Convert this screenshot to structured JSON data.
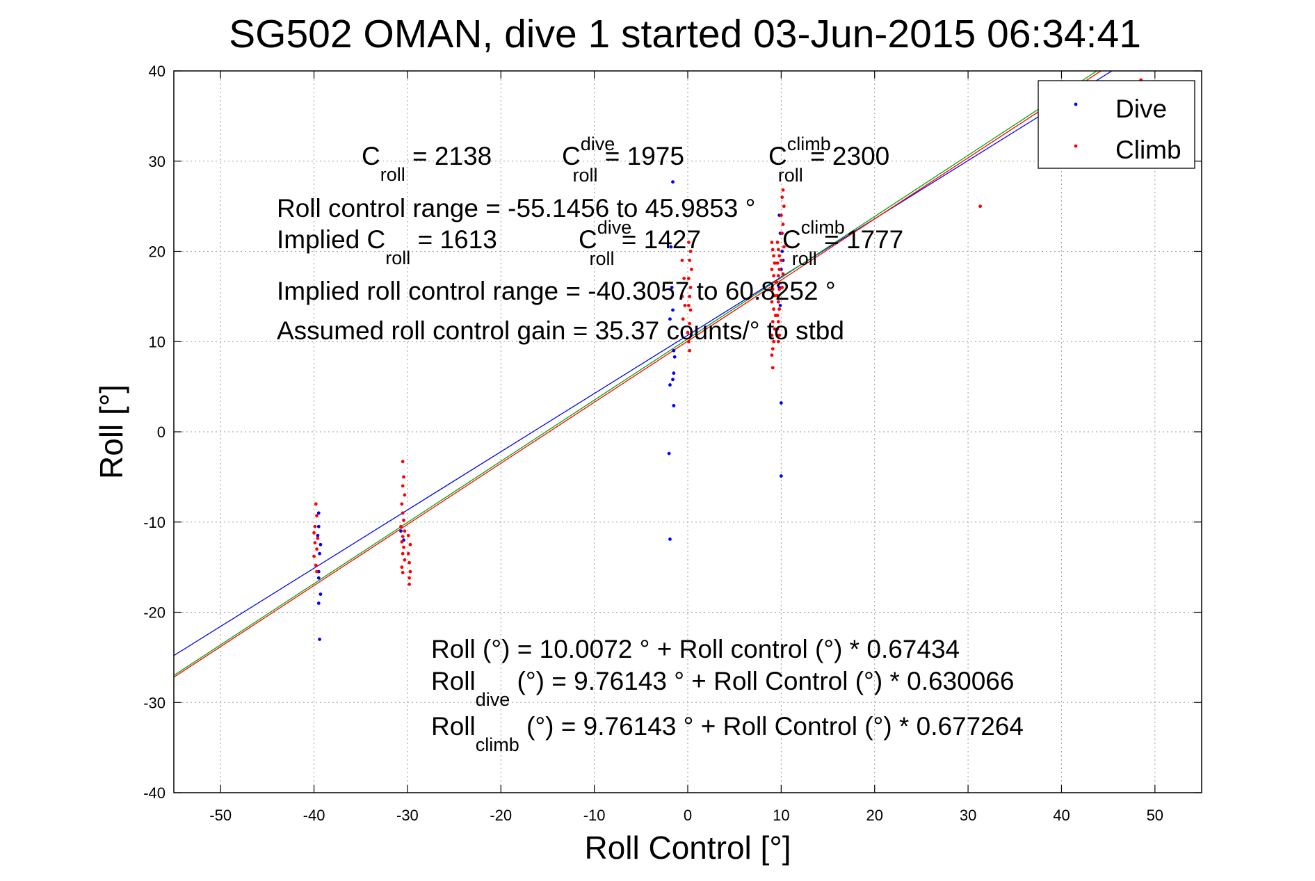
{
  "chart_data": {
    "type": "scatter",
    "title": "SG502 OMAN, dive 1 started 03-Jun-2015 06:34:41",
    "xlabel": "Roll Control [°]",
    "ylabel": "Roll [°]",
    "xlim": [
      -55,
      55
    ],
    "ylim": [
      -40,
      40
    ],
    "grid": true,
    "legend_position": "top-right",
    "x_ticks": [
      "-50",
      "-40",
      "-30",
      "-20",
      "-10",
      "0",
      "10",
      "20",
      "30",
      "40",
      "50"
    ],
    "y_ticks": [
      "40",
      "30",
      "20",
      "10",
      "0",
      "-10",
      "-20",
      "-30",
      "-40"
    ],
    "legend": [
      {
        "name": "Dive",
        "color": "#0000ff"
      },
      {
        "name": "Climb",
        "color": "#ff0000"
      }
    ],
    "series": [
      {
        "name": "Dive",
        "color": "#0000ff",
        "points": [
          [
            -39.5,
            -9.0
          ],
          [
            -39.5,
            -10.5
          ],
          [
            -39.6,
            -11.5
          ],
          [
            -39.3,
            -12.5
          ],
          [
            -39.4,
            -13.5
          ],
          [
            -39.5,
            -15.5
          ],
          [
            -39.5,
            -16.2
          ],
          [
            -39.3,
            -18.0
          ],
          [
            -39.5,
            -19.0
          ],
          [
            -39.4,
            -23.0
          ],
          [
            -30.7,
            -11.0
          ],
          [
            -30.4,
            -12.0
          ],
          [
            -1.6,
            27.7
          ],
          [
            -1.8,
            20.5
          ],
          [
            -1.7,
            16.0
          ],
          [
            -1.6,
            13.5
          ],
          [
            -1.9,
            12.5
          ],
          [
            -1.5,
            9.0
          ],
          [
            -1.4,
            8.3
          ],
          [
            -1.5,
            6.5
          ],
          [
            -1.6,
            5.8
          ],
          [
            -1.9,
            5.2
          ],
          [
            -1.5,
            2.9
          ],
          [
            -2.0,
            -2.4
          ],
          [
            -1.9,
            -11.9
          ],
          [
            9.8,
            24.0
          ],
          [
            9.9,
            22.0
          ],
          [
            10.1,
            20.0
          ],
          [
            10.0,
            18.0
          ],
          [
            9.8,
            16.0
          ],
          [
            10.2,
            19.0
          ],
          [
            9.9,
            14.0
          ],
          [
            10.0,
            3.2
          ],
          [
            10.0,
            -4.9
          ]
        ]
      },
      {
        "name": "Climb",
        "color": "#ff0000",
        "points": [
          [
            -39.8,
            -8.0
          ],
          [
            -39.7,
            -9.3
          ],
          [
            -39.9,
            -10.5
          ],
          [
            -40.0,
            -11.2
          ],
          [
            -39.6,
            -11.8
          ],
          [
            -39.9,
            -12.3
          ],
          [
            -39.7,
            -13.0
          ],
          [
            -40.0,
            -13.8
          ],
          [
            -39.8,
            -14.8
          ],
          [
            -39.7,
            -15.5
          ],
          [
            -30.5,
            -3.3
          ],
          [
            -30.4,
            -5.0
          ],
          [
            -30.5,
            -6.0
          ],
          [
            -30.3,
            -7.0
          ],
          [
            -30.6,
            -8.0
          ],
          [
            -30.5,
            -9.0
          ],
          [
            -30.4,
            -9.8
          ],
          [
            -30.7,
            -10.5
          ],
          [
            -30.3,
            -11.0
          ],
          [
            -30.5,
            -11.6
          ],
          [
            -30.6,
            -12.2
          ],
          [
            -30.4,
            -12.8
          ],
          [
            -30.5,
            -13.5
          ],
          [
            -30.3,
            -14.2
          ],
          [
            -30.6,
            -15.0
          ],
          [
            -30.5,
            -15.6
          ],
          [
            -29.9,
            -11.5
          ],
          [
            -29.7,
            -12.5
          ],
          [
            -29.9,
            -13.5
          ],
          [
            -29.8,
            -14.5
          ],
          [
            -29.7,
            -15.5
          ],
          [
            -29.8,
            -16.2
          ],
          [
            -29.8,
            -16.9
          ],
          [
            -0.6,
            19.0
          ],
          [
            -0.4,
            17.0
          ],
          [
            -0.6,
            15.0
          ],
          [
            -0.3,
            14.0
          ],
          [
            -0.5,
            12.5
          ],
          [
            0.2,
            19.0
          ],
          [
            0.4,
            18.0
          ],
          [
            0.1,
            17.0
          ],
          [
            0.3,
            16.0
          ],
          [
            0.2,
            15.0
          ],
          [
            0.1,
            14.0
          ],
          [
            0.3,
            13.5
          ],
          [
            0.2,
            12.0
          ],
          [
            0.0,
            11.0
          ],
          [
            0.1,
            10.0
          ],
          [
            0.2,
            9.0
          ],
          [
            0.3,
            20.0
          ],
          [
            0.1,
            21.0
          ],
          [
            9.0,
            21.0
          ],
          [
            9.1,
            20.2
          ],
          [
            9.2,
            19.5
          ],
          [
            9.3,
            18.7
          ],
          [
            9.0,
            18.0
          ],
          [
            9.2,
            17.3
          ],
          [
            9.4,
            16.6
          ],
          [
            9.1,
            15.8
          ],
          [
            9.3,
            15.1
          ],
          [
            9.0,
            14.4
          ],
          [
            9.2,
            13.6
          ],
          [
            9.4,
            12.9
          ],
          [
            9.1,
            12.2
          ],
          [
            9.3,
            11.4
          ],
          [
            9.0,
            10.7
          ],
          [
            9.2,
            10.0
          ],
          [
            9.1,
            9.2
          ],
          [
            9.0,
            8.5
          ],
          [
            9.1,
            7.1
          ],
          [
            9.6,
            21.0
          ],
          [
            9.7,
            20.2
          ],
          [
            9.8,
            19.5
          ],
          [
            9.6,
            18.7
          ],
          [
            9.8,
            18.0
          ],
          [
            9.7,
            17.3
          ],
          [
            9.5,
            16.6
          ],
          [
            9.8,
            15.8
          ],
          [
            9.6,
            15.1
          ],
          [
            9.7,
            14.4
          ],
          [
            9.8,
            13.6
          ],
          [
            9.6,
            12.9
          ],
          [
            9.7,
            12.2
          ],
          [
            9.6,
            11.4
          ],
          [
            9.8,
            10.7
          ],
          [
            9.7,
            10.0
          ],
          [
            10.2,
            26.8
          ],
          [
            10.1,
            26.0
          ],
          [
            10.3,
            25.0
          ],
          [
            10.0,
            24.0
          ],
          [
            10.2,
            23.0
          ],
          [
            10.1,
            22.0
          ],
          [
            10.3,
            20.5
          ],
          [
            10.0,
            19.0
          ],
          [
            10.2,
            17.5
          ],
          [
            10.1,
            16.0
          ],
          [
            31.3,
            25.0
          ],
          [
            48.5,
            39.0
          ]
        ]
      }
    ],
    "fit_lines": [
      {
        "color": "#0000ff",
        "points": [
          [
            -55,
            -24.8
          ],
          [
            55,
            46.2
          ]
        ]
      },
      {
        "color": "#ff0000",
        "points": [
          [
            -55,
            -27.2
          ],
          [
            55,
            47.3
          ]
        ]
      },
      {
        "color": "#00aa00",
        "points": [
          [
            -55,
            -27.0
          ],
          [
            55,
            47.6
          ]
        ]
      }
    ],
    "annotations": {
      "line1": [
        {
          "main": "C",
          "sub": "roll",
          "rest": " = 2138"
        },
        {
          "main": "C",
          "sup": "dive",
          "sub": "roll",
          "rest": " = 1975"
        },
        {
          "main": "C",
          "sup": "climb",
          "sub": "roll",
          "rest": " = 2300"
        }
      ],
      "range": "Roll control range = -55.1456 to 45.9853 °",
      "implied": [
        {
          "main": "Implied C",
          "sub": "roll",
          "rest": " = 1613"
        },
        {
          "main": "C",
          "sup": "dive",
          "sub": "roll",
          "rest": " = 1427"
        },
        {
          "main": "C",
          "sup": "climb",
          "sub": "roll",
          "rest": " = 1777"
        }
      ],
      "implied_range": "Implied roll control range = -40.3057 to 60.8252 °",
      "gain": "Assumed roll control gain = 35.37 counts/° to stbd",
      "fit1": "Roll (°) = 10.0072 ° + Roll control (°) * 0.67434",
      "fit2": {
        "main": "Roll",
        "sub": "dive",
        "rest": " (°) = 9.76143 ° + Roll Control (°) * 0.630066"
      },
      "fit3": {
        "main": "Roll",
        "sub": "climb",
        "rest": " (°) = 9.76143 ° + Roll Control (°) * 0.677264"
      }
    }
  }
}
